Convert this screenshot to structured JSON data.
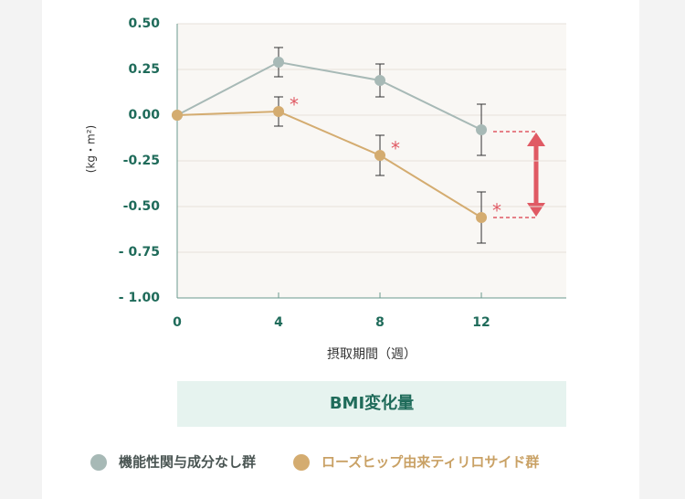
{
  "chart_data": {
    "type": "line",
    "title": "BMI変化量",
    "x_label": "摂取期間（週）",
    "y_label": "(kg・m²)",
    "x": [
      0,
      4,
      8,
      12
    ],
    "xlim": [
      0,
      15.35
    ],
    "xticks": [
      0,
      4,
      8,
      12
    ],
    "ylim": [
      -1.0,
      0.5
    ],
    "yticks": [
      {
        "value": 0.5,
        "label": "0.50"
      },
      {
        "value": 0.25,
        "label": "0.25"
      },
      {
        "value": 0,
        "label": "0.00"
      },
      {
        "value": -0.25,
        "label": "-0.25"
      },
      {
        "value": -0.5,
        "label": "-0.50"
      },
      {
        "value": -0.75,
        "label": "- 0.75"
      },
      {
        "value": -1.0,
        "label": "- 1.00"
      }
    ],
    "grid": true,
    "series": [
      {
        "name": "機能性関与成分なし群",
        "color": "#a7b9b6",
        "values": [
          0,
          0.29,
          0.19,
          -0.08
        ],
        "errors": [
          0,
          0.08,
          0.09,
          0.14
        ]
      },
      {
        "name": "ローズヒップ由来ティリロサイド群",
        "color": "#d4ac70",
        "values": [
          0,
          0.02,
          -0.22,
          -0.56
        ],
        "errors": [
          0,
          0.08,
          0.11,
          0.14
        ],
        "markers": [
          null,
          "*",
          "*",
          "*"
        ]
      }
    ]
  }
}
